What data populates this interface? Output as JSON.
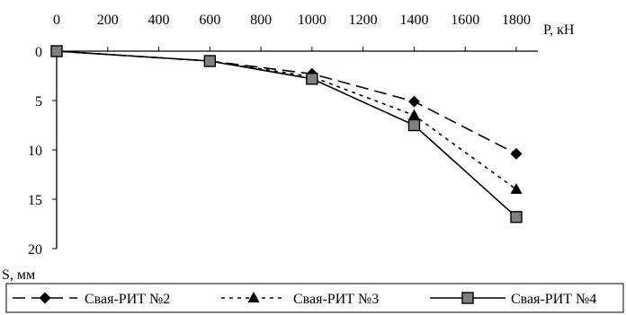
{
  "chart_data": {
    "type": "line",
    "title": "",
    "xlabel": "P, кН",
    "ylabel": "S, мм",
    "xlim": [
      0,
      1800
    ],
    "ylim": [
      20,
      0
    ],
    "y_inverted": true,
    "x_axis_position": "top",
    "grid": false,
    "legend_position": "bottom",
    "x_ticks": [
      "0",
      "200",
      "400",
      "600",
      "800",
      "1000",
      "1200",
      "1400",
      "1600",
      "1800"
    ],
    "y_ticks": [
      "0",
      "5",
      "10",
      "15",
      "20"
    ],
    "x": [
      0,
      600,
      1000,
      1400,
      1800
    ],
    "series": [
      {
        "name": "Свая-РИТ №2",
        "values": [
          0,
          1.0,
          2.3,
          5.1,
          10.4
        ],
        "marker": "diamond",
        "line": "long-dash"
      },
      {
        "name": "Свая-РИТ №3",
        "values": [
          0,
          1.0,
          2.6,
          6.5,
          14.0
        ],
        "marker": "triangle",
        "line": "dotted"
      },
      {
        "name": "Свая-РИТ №4",
        "values": [
          0,
          1.0,
          2.8,
          7.5,
          16.8
        ],
        "marker": "square",
        "line": "solid"
      }
    ]
  }
}
